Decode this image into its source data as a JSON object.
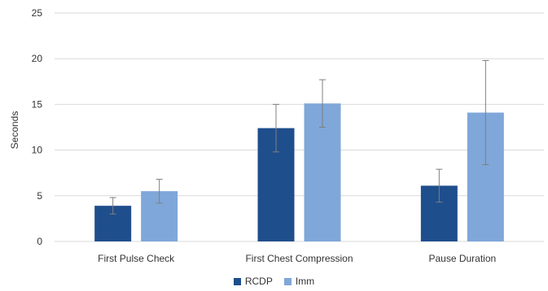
{
  "chart_data": {
    "type": "bar",
    "title": "",
    "xlabel": "",
    "ylabel": "Seconds",
    "ylim": [
      0,
      25
    ],
    "yticks": [
      0,
      5,
      10,
      15,
      20,
      25
    ],
    "grid": true,
    "legend_position": "bottom",
    "categories": [
      "First Pulse Check",
      "First Chest Compression",
      "Pause Duration"
    ],
    "series": [
      {
        "name": "RCDP",
        "color": "#1f4e8c",
        "values": [
          3.9,
          12.4,
          6.1
        ],
        "error": [
          0.9,
          2.6,
          1.8
        ]
      },
      {
        "name": "Imm",
        "color": "#7fa7d9",
        "values": [
          5.5,
          15.1,
          14.1
        ],
        "error": [
          1.3,
          2.6,
          5.7
        ]
      }
    ]
  }
}
